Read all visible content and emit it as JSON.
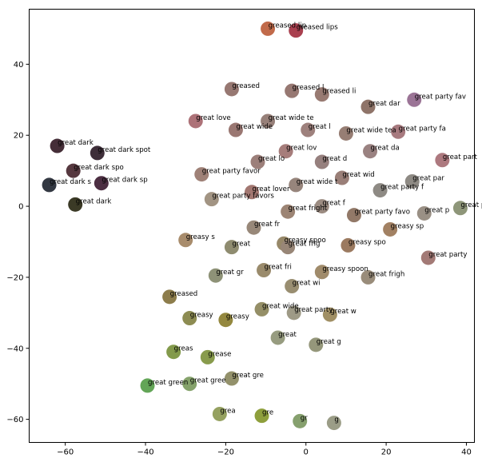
{
  "chart_data": {
    "type": "scatter",
    "title": "",
    "xlabel": "",
    "ylabel": "",
    "xlim": [
      -69,
      42
    ],
    "ylim": [
      -66.5,
      55.5
    ],
    "x_ticks": [
      -60,
      -40,
      -20,
      0,
      20,
      40
    ],
    "y_ticks": [
      -60,
      -40,
      -20,
      0,
      20,
      40
    ],
    "grid": false,
    "legend": "none",
    "points": [
      {
        "label": "greased lip",
        "x": -9.5,
        "y": 50.0,
        "color": "#c16a4a"
      },
      {
        "label": "greased lips",
        "x": -2.5,
        "y": 49.5,
        "color": "#a9404f"
      },
      {
        "label": "greased",
        "x": -18.5,
        "y": 33.0,
        "color": "#977872"
      },
      {
        "label": "greased l",
        "x": -3.5,
        "y": 32.5,
        "color": "#977872"
      },
      {
        "label": "greased li",
        "x": 4.0,
        "y": 31.5,
        "color": "#987a72"
      },
      {
        "label": "great dar",
        "x": 15.5,
        "y": 28.0,
        "color": "#8f7469"
      },
      {
        "label": "great party fav",
        "x": 27.0,
        "y": 30.0,
        "color": "#9b7496"
      },
      {
        "label": "great love",
        "x": -27.5,
        "y": 24.0,
        "color": "#ad7278"
      },
      {
        "label": "great wide",
        "x": -17.5,
        "y": 21.5,
        "color": "#9a7772"
      },
      {
        "label": "great wide te",
        "x": -9.5,
        "y": 24.0,
        "color": "#978079"
      },
      {
        "label": "great l",
        "x": 0.5,
        "y": 21.5,
        "color": "#9e817d"
      },
      {
        "label": "great wide tea",
        "x": 10.0,
        "y": 20.5,
        "color": "#977e74"
      },
      {
        "label": "great party fa",
        "x": 23.0,
        "y": 21.0,
        "color": "#a77a7f"
      },
      {
        "label": "great dark",
        "x": -62.0,
        "y": 17.0,
        "color": "#452e38"
      },
      {
        "label": "great dark spot",
        "x": -52.0,
        "y": 15.0,
        "color": "#3e2e39"
      },
      {
        "label": "great lov",
        "x": -5.0,
        "y": 15.5,
        "color": "#a67d7b"
      },
      {
        "label": "great da",
        "x": 16.0,
        "y": 15.5,
        "color": "#9a8281"
      },
      {
        "label": "great part",
        "x": 34.0,
        "y": 13.0,
        "color": "#ad797f"
      },
      {
        "label": "great lo",
        "x": -12.0,
        "y": 12.5,
        "color": "#9c7f7a"
      },
      {
        "label": "great d",
        "x": 4.0,
        "y": 12.5,
        "color": "#96807e"
      },
      {
        "label": "great dark spo",
        "x": -58.0,
        "y": 10.0,
        "color": "#56383f"
      },
      {
        "label": "great party favor",
        "x": -26.0,
        "y": 9.0,
        "color": "#9f8177"
      },
      {
        "label": "great wid",
        "x": 9.0,
        "y": 8.0,
        "color": "#9a7f78"
      },
      {
        "label": "great dark s",
        "x": -64.0,
        "y": 6.0,
        "color": "#333842"
      },
      {
        "label": "great dark sp",
        "x": -51.0,
        "y": 6.5,
        "color": "#4c2e42"
      },
      {
        "label": "great lover",
        "x": -13.5,
        "y": 4.0,
        "color": "#a27771"
      },
      {
        "label": "great wide t",
        "x": -2.5,
        "y": 6.0,
        "color": "#97857c"
      },
      {
        "label": "great par",
        "x": 26.5,
        "y": 7.0,
        "color": "#8e8a84"
      },
      {
        "label": "great party f",
        "x": 18.5,
        "y": 4.5,
        "color": "#8e8a84"
      },
      {
        "label": "great party favors",
        "x": -23.5,
        "y": 2.0,
        "color": "#a29483"
      },
      {
        "label": "great dark",
        "x": -57.5,
        "y": 0.5,
        "color": "#3b3a26"
      },
      {
        "label": "great f",
        "x": 4.0,
        "y": 0.0,
        "color": "#9c8c82"
      },
      {
        "label": "great pa",
        "x": 38.5,
        "y": -0.5,
        "color": "#8e9679"
      },
      {
        "label": "great fright",
        "x": -4.5,
        "y": -1.5,
        "color": "#9c8474"
      },
      {
        "label": "great party favo",
        "x": 12.0,
        "y": -2.5,
        "color": "#927968"
      },
      {
        "label": "great p",
        "x": 29.5,
        "y": -2.0,
        "color": "#9a9085"
      },
      {
        "label": "great fr",
        "x": -13.0,
        "y": -6.0,
        "color": "#988879"
      },
      {
        "label": "greasy sp",
        "x": 21.0,
        "y": -6.5,
        "color": "#a28163"
      },
      {
        "label": "greasy s",
        "x": -30.0,
        "y": -9.5,
        "color": "#a88c6c"
      },
      {
        "label": "great",
        "x": -18.5,
        "y": -11.5,
        "color": "#8f8c70"
      },
      {
        "label": "greasy spoo",
        "x": -5.5,
        "y": -10.5,
        "color": "#978869"
      },
      {
        "label": "great frig",
        "x": -4.5,
        "y": -11.5,
        "color": "#988677"
      },
      {
        "label": "greasy spo",
        "x": 10.5,
        "y": -11.0,
        "color": "#9b7a60"
      },
      {
        "label": "great party",
        "x": 30.5,
        "y": -14.5,
        "color": "#a37a76"
      },
      {
        "label": "great gr",
        "x": -22.5,
        "y": -19.5,
        "color": "#8e9277"
      },
      {
        "label": "great fri",
        "x": -10.5,
        "y": -18.0,
        "color": "#9a8b6c"
      },
      {
        "label": "greasy spoon",
        "x": 4.0,
        "y": -18.5,
        "color": "#a08b6b"
      },
      {
        "label": "great frigh",
        "x": 15.5,
        "y": -20.0,
        "color": "#998c7a"
      },
      {
        "label": "great wi",
        "x": -3.5,
        "y": -22.5,
        "color": "#998e71"
      },
      {
        "label": "greased",
        "x": -34.0,
        "y": -25.5,
        "color": "#8d7d4c"
      },
      {
        "label": "great wide",
        "x": -11.0,
        "y": -29.0,
        "color": "#958f67"
      },
      {
        "label": "great party",
        "x": -3.0,
        "y": -30.0,
        "color": "#9e9a86"
      },
      {
        "label": "great w",
        "x": 6.0,
        "y": -30.5,
        "color": "#a08f64"
      },
      {
        "label": "greasy",
        "x": -29.0,
        "y": -31.5,
        "color": "#8d8c52"
      },
      {
        "label": "greasy",
        "x": -20.0,
        "y": -32.0,
        "color": "#94883f"
      },
      {
        "label": "great",
        "x": -7.0,
        "y": -37.0,
        "color": "#979c80"
      },
      {
        "label": "great g",
        "x": 2.5,
        "y": -39.0,
        "color": "#95977b"
      },
      {
        "label": "greas",
        "x": -33.0,
        "y": -41.0,
        "color": "#839a4b"
      },
      {
        "label": "grease",
        "x": -24.5,
        "y": -42.5,
        "color": "#889b4c"
      },
      {
        "label": "great gre",
        "x": -18.5,
        "y": -48.5,
        "color": "#93916b"
      },
      {
        "label": "great green",
        "x": -39.5,
        "y": -50.5,
        "color": "#63a557"
      },
      {
        "label": "great gree",
        "x": -29.0,
        "y": -50.0,
        "color": "#85a26b"
      },
      {
        "label": "grea",
        "x": -21.5,
        "y": -58.5,
        "color": "#95a160"
      },
      {
        "label": "gre",
        "x": -11.0,
        "y": -59.0,
        "color": "#8e9f3c"
      },
      {
        "label": "gr",
        "x": -1.5,
        "y": -60.5,
        "color": "#86a06e"
      },
      {
        "label": "g",
        "x": 7.0,
        "y": -61.0,
        "color": "#9b9d87"
      }
    ]
  }
}
